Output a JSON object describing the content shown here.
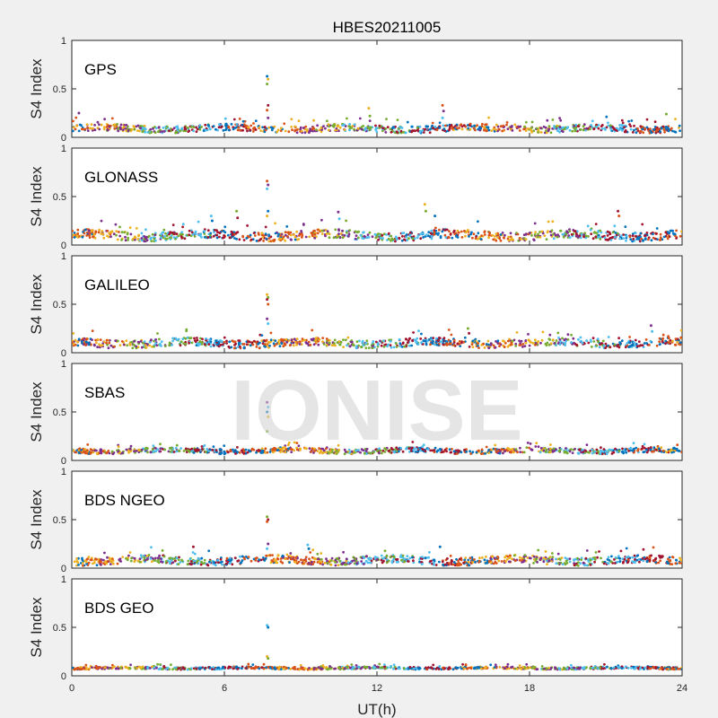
{
  "chart_data": {
    "type": "scatter",
    "title": "HBES20211005",
    "xlabel": "UT(h)",
    "ylabel": "S4 Index",
    "xlim": [
      0,
      24
    ],
    "ylim": [
      0,
      1
    ],
    "xticks": [
      "0",
      "6",
      "12",
      "18",
      "24"
    ],
    "yticks": [
      "0",
      "0.5",
      "1"
    ],
    "grid": false,
    "watermark": "IONISE",
    "series_colors": [
      "#0072BD",
      "#D95319",
      "#EDB120",
      "#7E2F8E",
      "#77AC30",
      "#4DBEEE",
      "#A2142F"
    ],
    "panels": [
      {
        "name": "GPS",
        "baseline": 0.09,
        "spread": 0.035,
        "spikes": [
          {
            "x": 7.7,
            "values": [
              0.63,
              0.6,
              0.55,
              0.33,
              0.28,
              0.2
            ]
          },
          {
            "x": 14.6,
            "values": [
              0.33,
              0.27,
              0.2
            ]
          },
          {
            "x": 11.7,
            "values": [
              0.3,
              0.22
            ]
          },
          {
            "x": 0.3,
            "values": [
              0.25
            ]
          },
          {
            "x": 23.4,
            "values": [
              0.24
            ]
          }
        ]
      },
      {
        "name": "GLONASS",
        "baseline": 0.1,
        "spread": 0.045,
        "spikes": [
          {
            "x": 7.7,
            "values": [
              0.66,
              0.62,
              0.58,
              0.35,
              0.3
            ]
          },
          {
            "x": 13.9,
            "values": [
              0.42,
              0.35
            ]
          },
          {
            "x": 10.5,
            "values": [
              0.34,
              0.27
            ]
          },
          {
            "x": 6.5,
            "values": [
              0.35,
              0.28
            ]
          },
          {
            "x": 5.5,
            "values": [
              0.3,
              0.25
            ]
          },
          {
            "x": 21.5,
            "values": [
              0.35,
              0.3
            ]
          },
          {
            "x": 14.3,
            "values": [
              0.3
            ]
          }
        ]
      },
      {
        "name": "GALILEO",
        "baseline": 0.1,
        "spread": 0.04,
        "spikes": [
          {
            "x": 7.7,
            "values": [
              0.6,
              0.57,
              0.55,
              0.5,
              0.35,
              0.3
            ]
          },
          {
            "x": 22.8,
            "values": [
              0.28,
              0.22
            ]
          },
          {
            "x": 15.6,
            "values": [
              0.25,
              0.2
            ]
          }
        ]
      },
      {
        "name": "SBAS",
        "baseline": 0.1,
        "spread": 0.025,
        "spikes": [
          {
            "x": 7.7,
            "values": [
              0.6,
              0.55,
              0.5,
              0.45,
              0.3
            ]
          }
        ]
      },
      {
        "name": "BDS NGEO",
        "baseline": 0.08,
        "spread": 0.04,
        "spikes": [
          {
            "x": 7.7,
            "values": [
              0.53,
              0.5,
              0.48,
              0.25,
              0.2
            ]
          },
          {
            "x": 9.3,
            "values": [
              0.24,
              0.2
            ]
          },
          {
            "x": 4.8,
            "values": [
              0.22
            ]
          },
          {
            "x": 14.5,
            "values": [
              0.22
            ]
          }
        ]
      },
      {
        "name": "BDS GEO",
        "baseline": 0.08,
        "spread": 0.012,
        "spikes": [
          {
            "x": 7.7,
            "values": [
              0.52,
              0.5,
              0.2,
              0.18
            ]
          }
        ]
      }
    ]
  }
}
